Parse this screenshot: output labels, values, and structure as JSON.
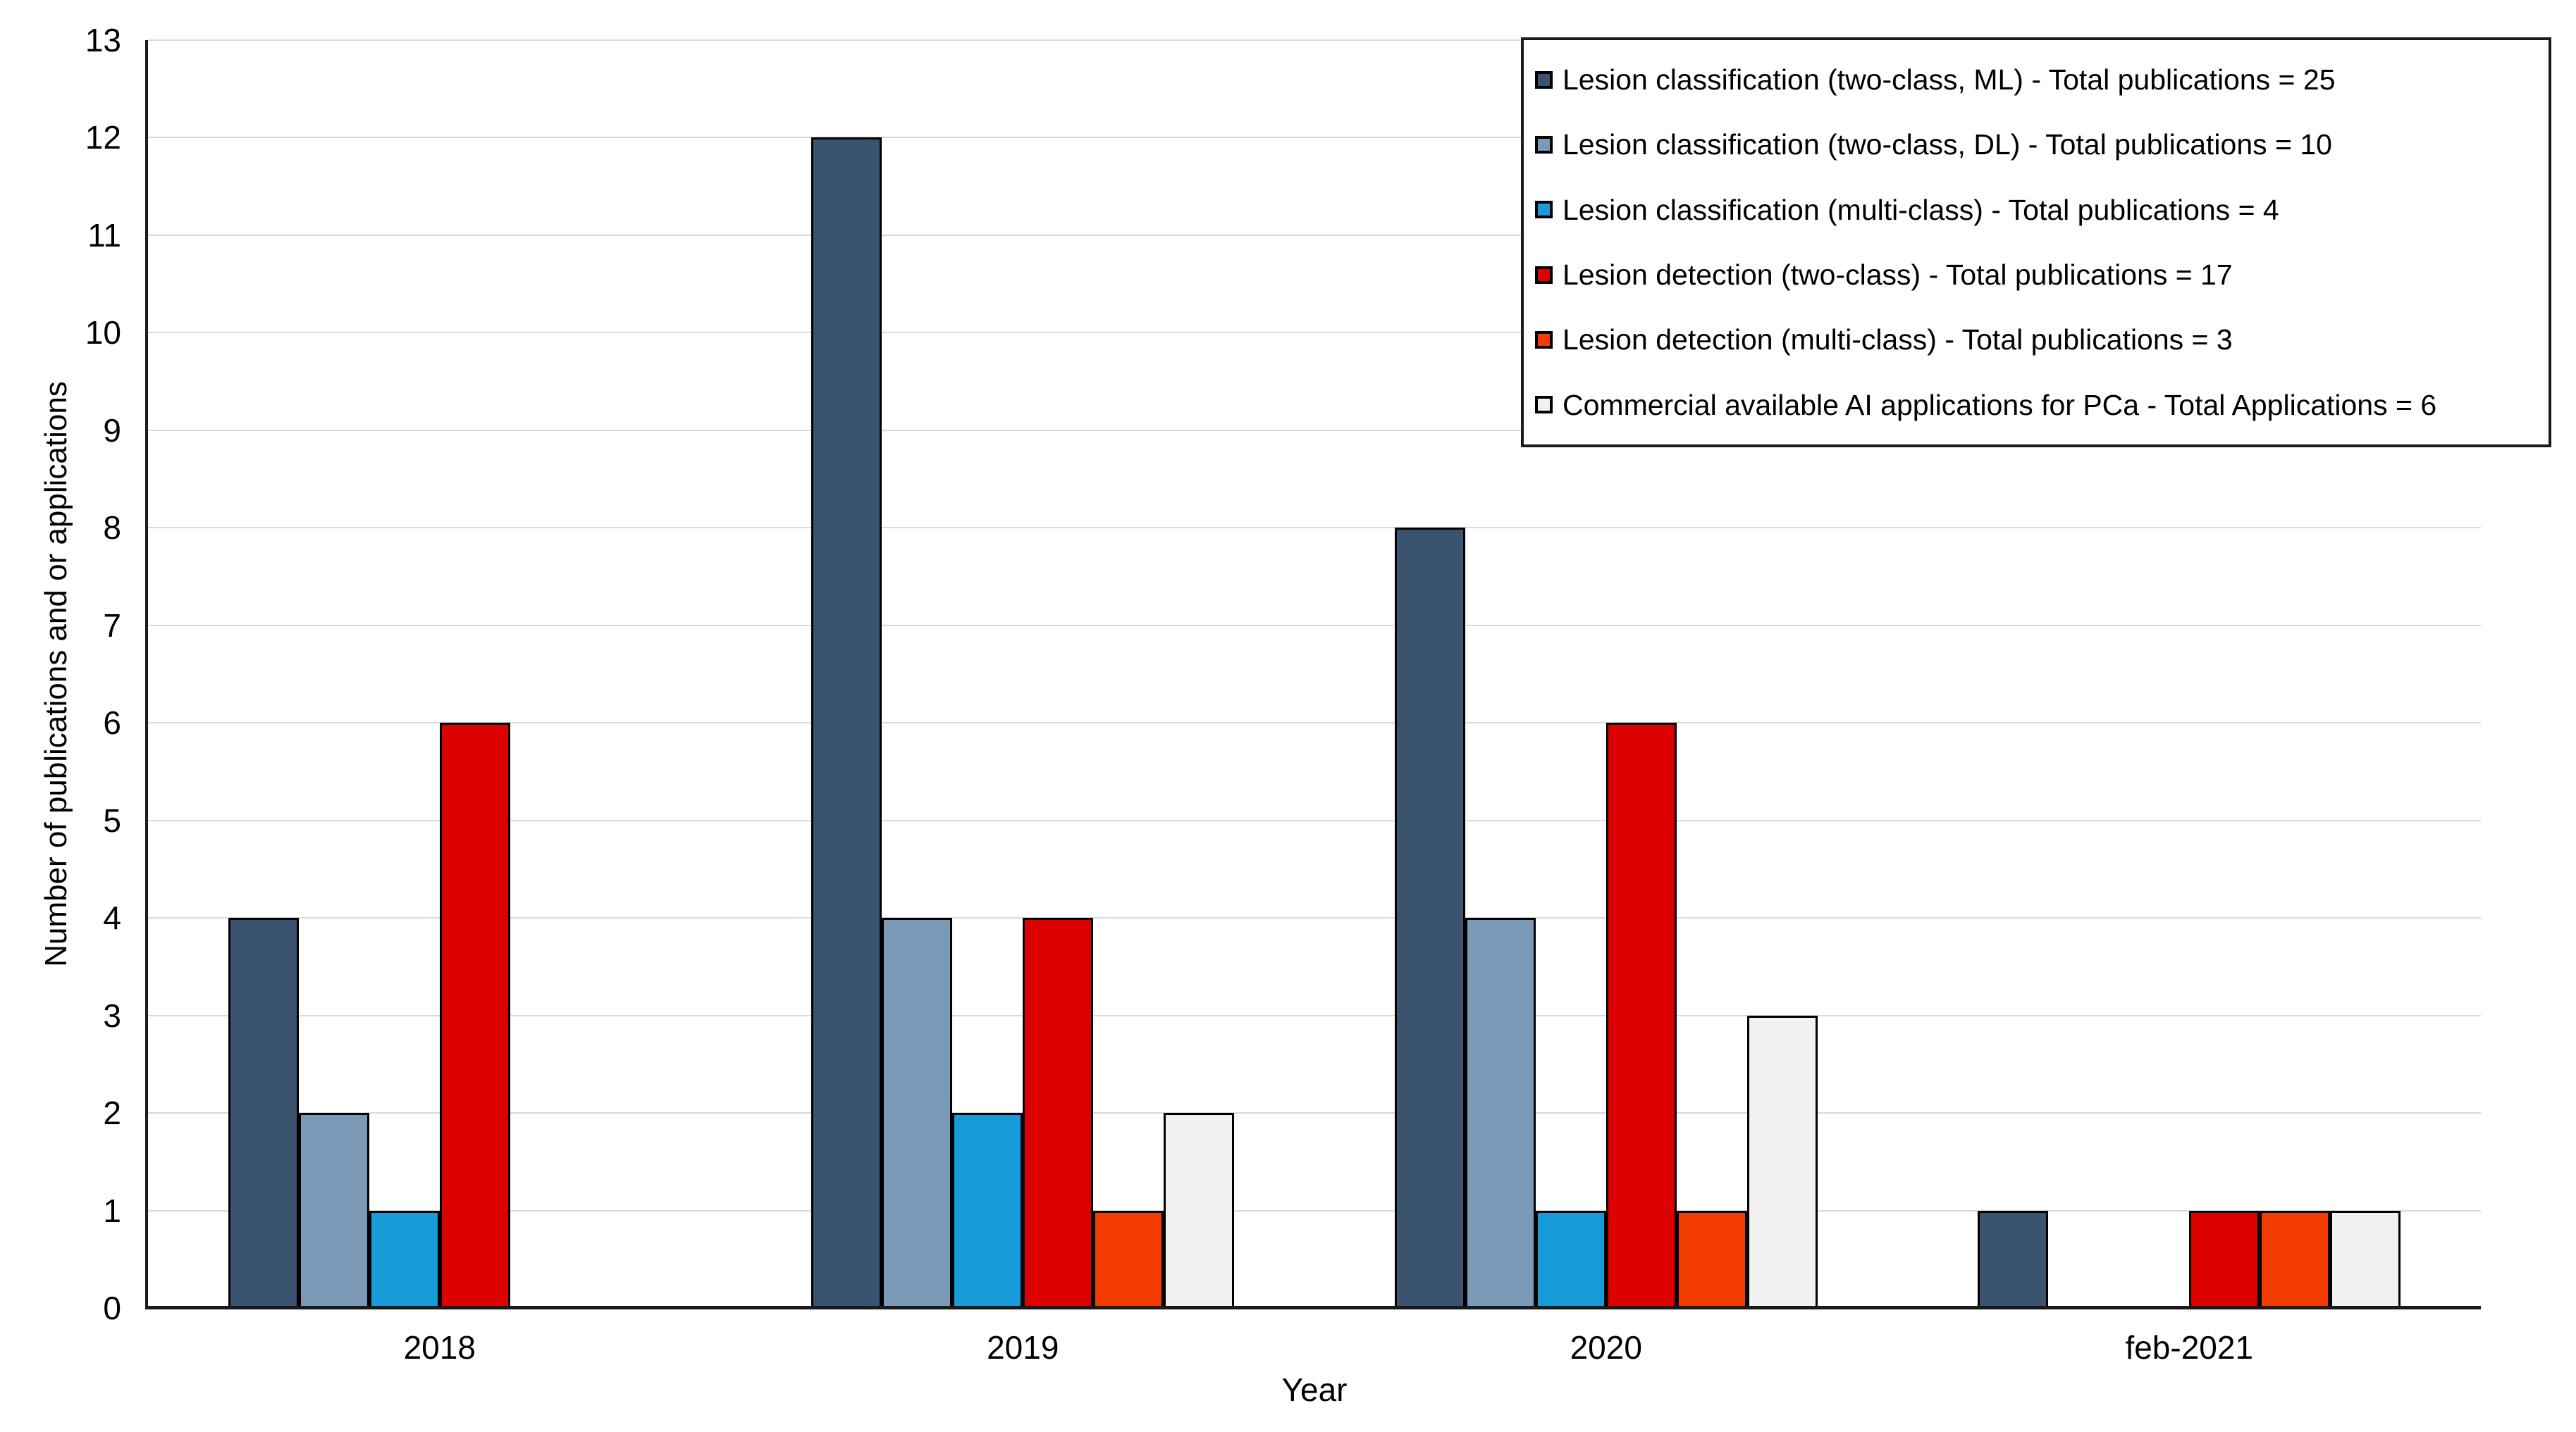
{
  "chart_data": {
    "type": "bar",
    "title": "",
    "xlabel": "Year",
    "ylabel": "Number of publications and or applications",
    "categories": [
      "2018",
      "2019",
      "2020",
      "feb-2021"
    ],
    "y_ticks": [
      0,
      1,
      2,
      3,
      4,
      5,
      6,
      7,
      8,
      9,
      10,
      11,
      12,
      13
    ],
    "ylim": [
      0,
      13
    ],
    "grid": true,
    "legend_position": "top-right",
    "series": [
      {
        "name": "Lesion classification (two-class, ML) - Total publications = 25",
        "color": "#3A5470",
        "pattern": "solid",
        "values": [
          4,
          12,
          8,
          1
        ]
      },
      {
        "name": "Lesion classification (two-class, DL) - Total publications = 10",
        "color": "#7B9AB8",
        "pattern": "solid",
        "values": [
          2,
          4,
          4,
          0
        ]
      },
      {
        "name": "Lesion classification (multi-class) - Total publications = 4",
        "color": "#189CD9",
        "pattern": "solid",
        "values": [
          1,
          2,
          1,
          0
        ]
      },
      {
        "name": "Lesion detection (two-class) - Total publications = 17",
        "color": "#DC0000",
        "pattern": "solid",
        "values": [
          6,
          4,
          6,
          1
        ]
      },
      {
        "name": "Lesion detection (multi-class) - Total publications = 3",
        "color": "#F23B00",
        "pattern": "solid",
        "values": [
          0,
          1,
          1,
          1
        ]
      },
      {
        "name": "Commercial available AI applications for PCa - Total Applications = 6",
        "color": "#F1F1F1",
        "pattern": "dots",
        "values": [
          0,
          2,
          3,
          1
        ]
      }
    ],
    "axis_color": "#1a1a1a",
    "gridline_color": "#d9d9d9"
  }
}
